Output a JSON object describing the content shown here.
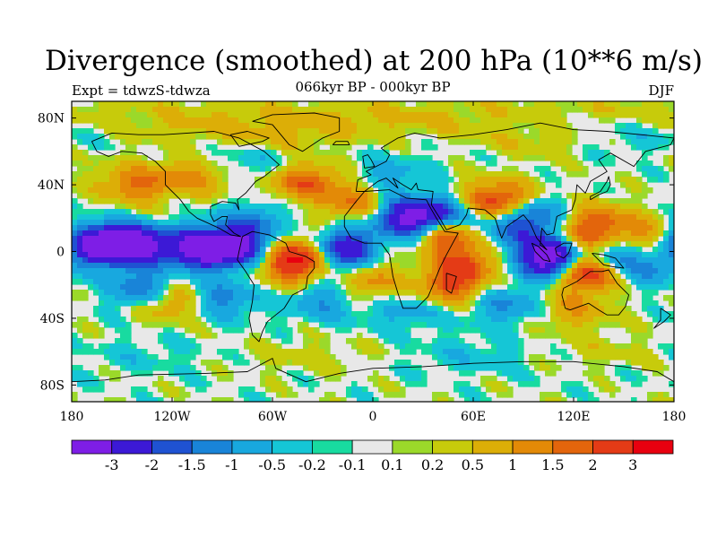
{
  "title": "Divergence (smoothed) at 200 hPa (10**6 m/s)",
  "subtitle_left": "Expt = tdwzS-tdwza",
  "subtitle_center": "066kyr BP - 000kyr BP",
  "subtitle_right": "DJF",
  "chart_data": {
    "type": "heatmap",
    "map_projection": "cylindrical-equidistant",
    "xlim": [
      -180,
      180
    ],
    "ylim": [
      -90,
      90
    ],
    "x_ticks": [
      {
        "value": -180,
        "label": "180"
      },
      {
        "value": -120,
        "label": "120W"
      },
      {
        "value": -60,
        "label": "60W"
      },
      {
        "value": 0,
        "label": "0"
      },
      {
        "value": 60,
        "label": "60E"
      },
      {
        "value": 120,
        "label": "120E"
      },
      {
        "value": 180,
        "label": "180"
      }
    ],
    "y_ticks": [
      {
        "value": 80,
        "label": "80N"
      },
      {
        "value": 40,
        "label": "40N"
      },
      {
        "value": 0,
        "label": "0"
      },
      {
        "value": -40,
        "label": "40S"
      },
      {
        "value": -80,
        "label": "80S"
      }
    ],
    "colorbar": {
      "colors": [
        "#7e1ee6",
        "#3c19d6",
        "#1f52d2",
        "#1984d8",
        "#18a8df",
        "#15c6d6",
        "#18dba0",
        "#e8e8e8",
        "#9bd92a",
        "#c7cb0b",
        "#dcae07",
        "#e38a07",
        "#e3650c",
        "#e43b16",
        "#e8000f"
      ],
      "boundaries": [
        -3,
        -2,
        -1.5,
        -1,
        -0.5,
        -0.2,
        -0.1,
        0.1,
        0.2,
        0.5,
        1,
        1.5,
        2,
        3
      ],
      "labels": [
        "-3",
        "-2",
        "-1.5",
        "-1",
        "-0.5",
        "-0.2",
        "-0.1",
        "0.1",
        "0.2",
        "0.5",
        "1",
        "1.5",
        "2",
        "3"
      ]
    },
    "field_features": [
      {
        "lon": -165,
        "lat": 4,
        "value": -3.2
      },
      {
        "lon": -150,
        "lat": 4,
        "value": -3.0
      },
      {
        "lon": -135,
        "lat": 3,
        "value": -2.2
      },
      {
        "lon": -110,
        "lat": 2,
        "value": -2.0
      },
      {
        "lon": -95,
        "lat": 2,
        "value": -3.0
      },
      {
        "lon": -80,
        "lat": 3,
        "value": -2.5
      },
      {
        "lon": -72,
        "lat": 18,
        "value": -1.2
      },
      {
        "lon": -40,
        "lat": -4,
        "value": 2.5
      },
      {
        "lon": -52,
        "lat": -8,
        "value": 1.5
      },
      {
        "lon": -22,
        "lat": -2,
        "value": -2.0
      },
      {
        "lon": -12,
        "lat": 5,
        "value": -1.5
      },
      {
        "lon": -140,
        "lat": 40,
        "value": 1.6
      },
      {
        "lon": -100,
        "lat": 45,
        "value": 1.2
      },
      {
        "lon": -75,
        "lat": 50,
        "value": -1.0
      },
      {
        "lon": -42,
        "lat": 42,
        "value": 1.8
      },
      {
        "lon": -12,
        "lat": 30,
        "value": 1.5
      },
      {
        "lon": 8,
        "lat": 45,
        "value": -0.8
      },
      {
        "lon": 20,
        "lat": 20,
        "value": -2.5
      },
      {
        "lon": 34,
        "lat": 21,
        "value": -2.0
      },
      {
        "lon": 44,
        "lat": 10,
        "value": 2.2
      },
      {
        "lon": 55,
        "lat": -8,
        "value": 2.0
      },
      {
        "lon": 45,
        "lat": -20,
        "value": 1.8
      },
      {
        "lon": 58,
        "lat": 22,
        "value": -1.0
      },
      {
        "lon": 74,
        "lat": 30,
        "value": 2.8
      },
      {
        "lon": 85,
        "lat": 12,
        "value": -1.2
      },
      {
        "lon": 95,
        "lat": 22,
        "value": -1.5
      },
      {
        "lon": 105,
        "lat": -5,
        "value": -3.2
      },
      {
        "lon": 112,
        "lat": 2,
        "value": -2.4
      },
      {
        "lon": 122,
        "lat": 5,
        "value": 2.6
      },
      {
        "lon": 128,
        "lat": -12,
        "value": 3.0
      },
      {
        "lon": 135,
        "lat": 18,
        "value": 1.5
      },
      {
        "lon": 140,
        "lat": -2,
        "value": -1.8
      },
      {
        "lon": 158,
        "lat": 10,
        "value": 1.2
      },
      {
        "lon": 165,
        "lat": -10,
        "value": -1.0
      },
      {
        "lon": -138,
        "lat": -22,
        "value": -1.5
      },
      {
        "lon": -120,
        "lat": -30,
        "value": 1.2
      },
      {
        "lon": -90,
        "lat": -28,
        "value": -1.3
      },
      {
        "lon": -30,
        "lat": -30,
        "value": -1.0
      },
      {
        "lon": 0,
        "lat": -18,
        "value": 1.2
      },
      {
        "lon": 20,
        "lat": -35,
        "value": -0.8
      },
      {
        "lon": 80,
        "lat": -32,
        "value": -1.1
      },
      {
        "lon": 120,
        "lat": -35,
        "value": 1.0
      },
      {
        "lon": -120,
        "lat": 75,
        "value": 0.4
      },
      {
        "lon": -50,
        "lat": 70,
        "value": 0.6
      },
      {
        "lon": 30,
        "lat": 80,
        "value": 0.3
      },
      {
        "lon": 100,
        "lat": 68,
        "value": 0.5
      },
      {
        "lon": 150,
        "lat": 70,
        "value": -0.4
      },
      {
        "lon": -140,
        "lat": -62,
        "value": -0.3
      },
      {
        "lon": -40,
        "lat": -62,
        "value": 0.3
      },
      {
        "lon": 60,
        "lat": -62,
        "value": -0.4
      },
      {
        "lon": 140,
        "lat": -60,
        "value": 0.3
      }
    ],
    "grid": false,
    "legend_placement": "bottom colorbar"
  }
}
